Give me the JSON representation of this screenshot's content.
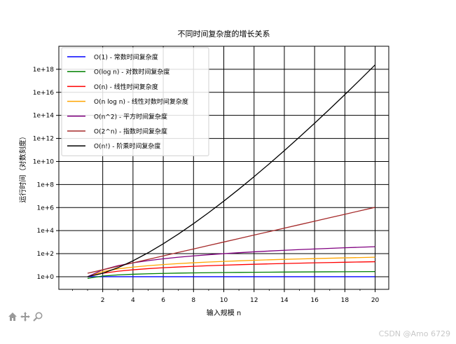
{
  "toolbar": {
    "home_icon": "home-icon",
    "pan_icon": "move-icon",
    "zoom_icon": "zoom-icon"
  },
  "watermark": "CSDN @Amo 6729",
  "chart_data": {
    "type": "line",
    "title": "不同时间复杂度的增长关系",
    "xlabel": "输入规模 n",
    "ylabel": "运行时间（对数刻度）",
    "yscale": "log",
    "xlim": [
      -0.9,
      20.9
    ],
    "ylim": [
      0.08,
      1e+20
    ],
    "xticks": [
      2,
      4,
      6,
      8,
      10,
      12,
      14,
      16,
      18,
      20
    ],
    "xtick_labels": [
      "2",
      "4",
      "6",
      "8",
      "10",
      "12",
      "14",
      "16",
      "18",
      "20"
    ],
    "yticks": [
      1,
      100,
      10000,
      1000000,
      100000000,
      10000000000,
      1000000000000,
      100000000000000,
      10000000000000000,
      1000000000000000000
    ],
    "ytick_labels": [
      "1e+0",
      "1e+2",
      "1e+4",
      "1e+6",
      "1e+8",
      "1e+10",
      "1e+12",
      "1e+14",
      "1e+16",
      "1e+18"
    ],
    "grid": true,
    "legend_position": "top-left",
    "x": [
      1,
      2,
      3,
      4,
      5,
      6,
      7,
      8,
      9,
      10,
      11,
      12,
      13,
      14,
      15,
      16,
      17,
      18,
      19,
      20
    ],
    "series": [
      {
        "name": "O(1) - 常数时间复杂度",
        "color": "#0000ff",
        "values": [
          1,
          1,
          1,
          1,
          1,
          1,
          1,
          1,
          1,
          1,
          1,
          1,
          1,
          1,
          1,
          1,
          1,
          1,
          1,
          1
        ]
      },
      {
        "name": "O(log n) - 对数时间复杂度",
        "color": "#008000",
        "values": [
          0.72,
          1.15,
          1.43,
          1.64,
          1.8,
          1.93,
          2.05,
          2.14,
          2.23,
          2.3,
          2.37,
          2.43,
          2.48,
          2.53,
          2.58,
          2.63,
          2.67,
          2.71,
          2.74,
          2.78
        ]
      },
      {
        "name": "O(n) - 线性时间复杂度",
        "color": "#ff0000",
        "values": [
          1,
          2,
          3,
          4,
          5,
          6,
          7,
          8,
          9,
          10,
          11,
          12,
          13,
          14,
          15,
          16,
          17,
          18,
          19,
          20
        ]
      },
      {
        "name": "O(n log n) - 线性对数时间复杂度",
        "color": "#ffa500",
        "values": [
          1,
          2.8,
          4.75,
          6.85,
          9.05,
          11.35,
          13.74,
          16.2,
          18.74,
          21.3,
          23.9,
          26.6,
          29.3,
          32,
          34.8,
          37.6,
          40.4,
          43.2,
          46.1,
          49
        ]
      },
      {
        "name": "O(n^2) - 平方时间复杂度",
        "color": "#800080",
        "values": [
          1,
          4,
          9,
          16,
          25,
          36,
          49,
          64,
          81,
          100,
          121,
          144,
          169,
          196,
          225,
          256,
          289,
          324,
          361,
          400
        ]
      },
      {
        "name": "O(2^n) - 指数时间复杂度",
        "color": "#a52a2a",
        "values": [
          2,
          4,
          8,
          16,
          32,
          64,
          128,
          256,
          512,
          1024,
          2048,
          4096,
          8192,
          16384,
          32768,
          65536,
          131072,
          262144,
          524288,
          1048576
        ]
      },
      {
        "name": "O(n!) - 阶乘时间复杂度",
        "color": "#000000",
        "values": [
          1,
          2,
          6,
          24,
          120,
          720,
          5040,
          40320,
          362880,
          3628800,
          39916800,
          479001600,
          6227020800,
          87178291200,
          1307674368000,
          20922789888000,
          355687428096000,
          6402373705728000,
          121645100408832000,
          2432902008176640000
        ]
      }
    ]
  }
}
